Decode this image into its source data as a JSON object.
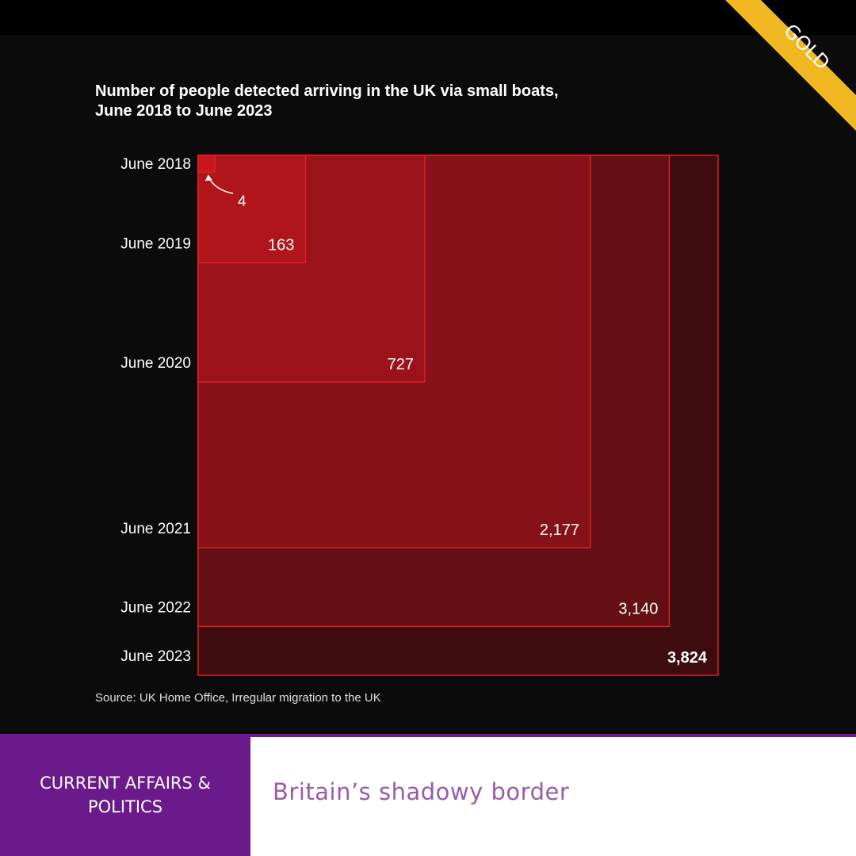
{
  "badge": {
    "text": "GOLD",
    "color": "#f0b823"
  },
  "category": {
    "line1": "CURRENT AFFAIRS &",
    "line2": "POLITICS"
  },
  "article": {
    "title": "Britain’s shadowy border"
  },
  "chart_data": {
    "type": "nested-square",
    "title_line1": "Number of people detected arriving in the UK via small boats,",
    "title_line2": "June 2018 to June 2023",
    "categories": [
      "June 2018",
      "June 2019",
      "June 2020",
      "June 2021",
      "June 2022",
      "June 2023"
    ],
    "values": [
      4,
      163,
      727,
      2177,
      3140,
      3824
    ],
    "value_labels": [
      "4",
      "163",
      "727",
      "2,177",
      "3,140",
      "3,824"
    ],
    "fill_colors": [
      "#c8161d",
      "#b0151c",
      "#9c121a",
      "#871118",
      "#630f14",
      "#3e0b0e"
    ],
    "edge_color": "#e01e26",
    "source": "Source: UK Home Office, Irregular migration to the UK"
  }
}
